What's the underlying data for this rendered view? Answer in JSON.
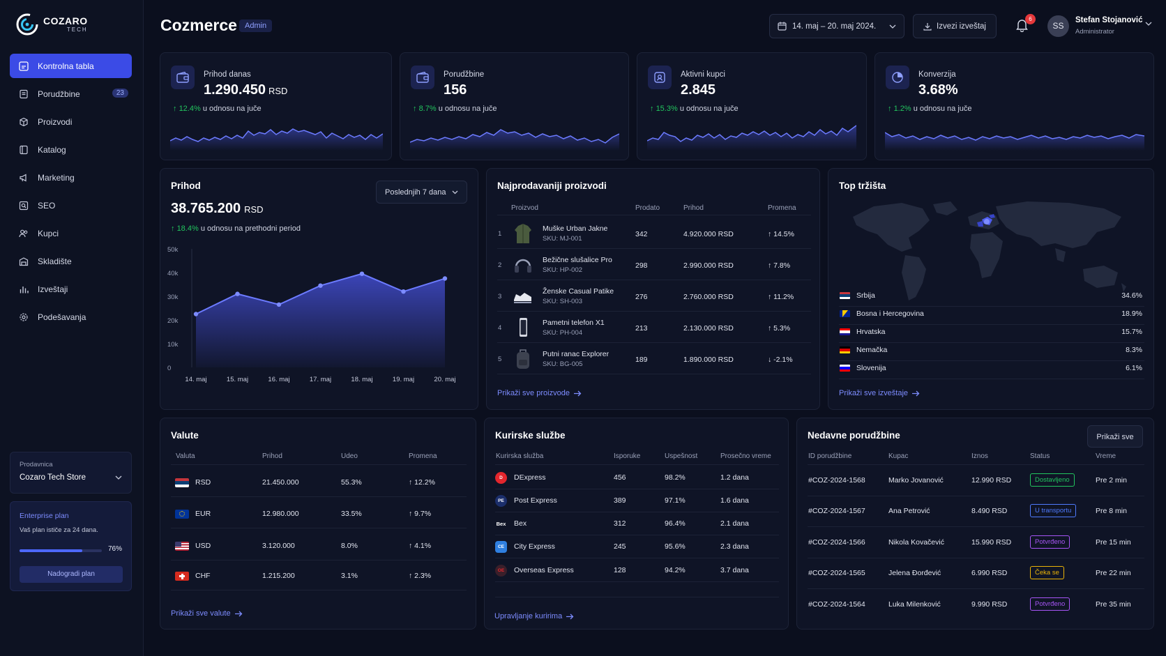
{
  "brand": {
    "name": "COZARO",
    "sub": "TECH"
  },
  "sidebar": {
    "items": [
      {
        "label": "Kontrolna tabla",
        "icon": "dashboard-icon",
        "active": true
      },
      {
        "label": "Porudžbine",
        "icon": "orders-icon",
        "badge": "23"
      },
      {
        "label": "Proizvodi",
        "icon": "box-icon"
      },
      {
        "label": "Katalog",
        "icon": "catalog-icon"
      },
      {
        "label": "Marketing",
        "icon": "megaphone-icon"
      },
      {
        "label": "SEO",
        "icon": "seo-icon"
      },
      {
        "label": "Kupci",
        "icon": "users-icon"
      },
      {
        "label": "Skladište",
        "icon": "warehouse-icon"
      },
      {
        "label": "Izveštaji",
        "icon": "reports-icon"
      },
      {
        "label": "Podešavanja",
        "icon": "gear-icon"
      }
    ],
    "store": {
      "label": "Prodavnica",
      "value": "Cozaro Tech Store"
    },
    "plan": {
      "title": "Enterprise plan",
      "desc": "Vaš plan ističe za 24 dana.",
      "progress": 76,
      "progress_label": "76%",
      "button": "Nadogradi plan"
    }
  },
  "header": {
    "title": "Cozmerce",
    "badge": "Admin",
    "date_range": "14. maj – 20. maj 2024.",
    "export": "Izvezi izveštaj",
    "notifications": "6",
    "user": {
      "initials": "SS",
      "name": "Stefan Stojanović",
      "role": "Administrator"
    }
  },
  "kpis": [
    {
      "label": "Prihod danas",
      "value": "1.290.450",
      "unit": "RSD",
      "change": "12.4%",
      "change_text": "u odnosu na juče"
    },
    {
      "label": "Porudžbine",
      "value": "156",
      "unit": "",
      "change": "8.7%",
      "change_text": "u odnosu na juče"
    },
    {
      "label": "Aktivni kupci",
      "value": "2.845",
      "unit": "",
      "change": "15.3%",
      "change_text": "u odnosu na juče"
    },
    {
      "label": "Konverzija",
      "value": "3.68%",
      "unit": "",
      "change": "1.2%",
      "change_text": "u odnosu na juče"
    }
  ],
  "revenue": {
    "title": "Prihod",
    "period": "Poslednjih 7 dana",
    "value": "38.765.200",
    "unit": "RSD",
    "change": "18.4%",
    "change_text": "u odnosu na prethodni period"
  },
  "chart_data": {
    "type": "area",
    "x": [
      "14. maj",
      "15. maj",
      "16. maj",
      "17. maj",
      "18. maj",
      "19. maj",
      "20. maj"
    ],
    "values": [
      22500,
      31000,
      26500,
      34500,
      39500,
      32000,
      37500
    ],
    "yticks": [
      "0",
      "10k",
      "20k",
      "30k",
      "40k",
      "50k"
    ],
    "ylim": [
      0,
      50000
    ],
    "grid": false
  },
  "top_products": {
    "title": "Najprodavaniji proizvodi",
    "headers": [
      "Proizvod",
      "Prodato",
      "Prihod",
      "Promena"
    ],
    "rows": [
      {
        "rank": "1",
        "name": "Muške Urban Jakne",
        "sku": "SKU: MJ-001",
        "sold": "342",
        "revenue": "4.920.000 RSD",
        "change": "↑ 14.5%",
        "dir": "up"
      },
      {
        "rank": "2",
        "name": "Bežične slušalice Pro",
        "sku": "SKU: HP-002",
        "sold": "298",
        "revenue": "2.990.000 RSD",
        "change": "↑ 7.8%",
        "dir": "up"
      },
      {
        "rank": "3",
        "name": "Ženske Casual Patike",
        "sku": "SKU: SH-003",
        "sold": "276",
        "revenue": "2.760.000 RSD",
        "change": "↑ 11.2%",
        "dir": "up"
      },
      {
        "rank": "4",
        "name": "Pametni telefon X1",
        "sku": "SKU: PH-004",
        "sold": "213",
        "revenue": "2.130.000 RSD",
        "change": "↑ 5.3%",
        "dir": "up"
      },
      {
        "rank": "5",
        "name": "Putni ranac Explorer",
        "sku": "SKU: BG-005",
        "sold": "189",
        "revenue": "1.890.000 RSD",
        "change": "↓ -2.1%",
        "dir": "down"
      }
    ],
    "link": "Prikaži sve proizvode"
  },
  "markets": {
    "title": "Top tržišta",
    "rows": [
      {
        "country": "Srbija",
        "pct": "34.6%"
      },
      {
        "country": "Bosna i Hercegovina",
        "pct": "18.9%"
      },
      {
        "country": "Hrvatska",
        "pct": "15.7%"
      },
      {
        "country": "Nemačka",
        "pct": "8.3%"
      },
      {
        "country": "Slovenija",
        "pct": "6.1%"
      }
    ],
    "link": "Prikaži sve izveštaje"
  },
  "currencies": {
    "title": "Valute",
    "headers": [
      "Valuta",
      "Prihod",
      "Udeo",
      "Promena"
    ],
    "rows": [
      {
        "code": "RSD",
        "revenue": "21.450.000",
        "share": "55.3%",
        "change": "↑ 12.2%"
      },
      {
        "code": "EUR",
        "revenue": "12.980.000",
        "share": "33.5%",
        "change": "↑ 9.7%"
      },
      {
        "code": "USD",
        "revenue": "3.120.000",
        "share": "8.0%",
        "change": "↑ 4.1%"
      },
      {
        "code": "CHF",
        "revenue": "1.215.200",
        "share": "3.1%",
        "change": "↑ 2.3%"
      }
    ],
    "link": "Prikaži sve valute"
  },
  "couriers": {
    "title": "Kurirske službe",
    "headers": [
      "Kurirska služba",
      "Isporuke",
      "Uspešnost",
      "Prosečno vreme"
    ],
    "rows": [
      {
        "name": "DExpress",
        "deliveries": "456",
        "success": "98.2%",
        "time": "1.2 dana"
      },
      {
        "name": "Post Express",
        "deliveries": "389",
        "success": "97.1%",
        "time": "1.6 dana"
      },
      {
        "name": "Bex",
        "deliveries": "312",
        "success": "96.4%",
        "time": "2.1 dana"
      },
      {
        "name": "City Express",
        "deliveries": "245",
        "success": "95.6%",
        "time": "2.3 dana"
      },
      {
        "name": "Overseas Express",
        "deliveries": "128",
        "success": "94.2%",
        "time": "3.7 dana"
      }
    ],
    "link": "Upravljanje kuririma"
  },
  "orders": {
    "title": "Nedavne porudžbine",
    "button": "Prikaži sve",
    "headers": [
      "ID porudžbine",
      "Kupac",
      "Iznos",
      "Status",
      "Vreme"
    ],
    "rows": [
      {
        "id": "#COZ-2024-1568",
        "customer": "Marko Jovanović",
        "amount": "12.990 RSD",
        "status": "Dostavljeno",
        "color": "#22c55e",
        "time": "Pre 2 min"
      },
      {
        "id": "#COZ-2024-1567",
        "customer": "Ana Petrović",
        "amount": "8.490 RSD",
        "status": "U transportu",
        "color": "#4f7bff",
        "time": "Pre 8 min"
      },
      {
        "id": "#COZ-2024-1566",
        "customer": "Nikola Kovačević",
        "amount": "15.990 RSD",
        "status": "Potvrđeno",
        "color": "#a855f7",
        "time": "Pre 15 min"
      },
      {
        "id": "#COZ-2024-1565",
        "customer": "Jelena Đorđević",
        "amount": "6.990 RSD",
        "status": "Čeka se",
        "color": "#eab308",
        "time": "Pre 22 min"
      },
      {
        "id": "#COZ-2024-1564",
        "customer": "Luka Milenković",
        "amount": "9.990 RSD",
        "status": "Potvrđeno",
        "color": "#a855f7",
        "time": "Pre 35 min"
      }
    ]
  }
}
